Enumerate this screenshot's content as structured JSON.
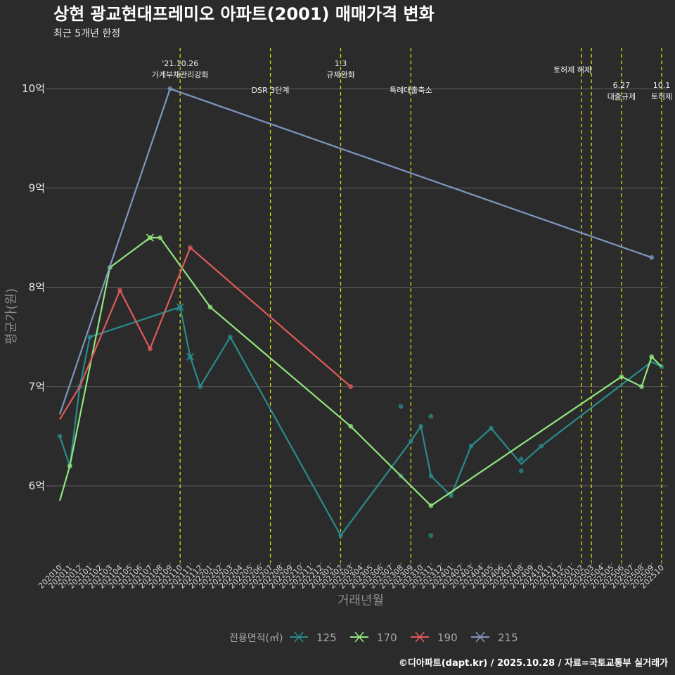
{
  "chart_data": {
    "type": "line",
    "title": "상현 광교현대프레미오 아파트(2001) 매매가격 변화",
    "subtitle": "최근 5개년 한정",
    "xlabel": "거래년월",
    "ylabel": "평균가(원)",
    "caption": "©디아파트(dapt.kr) / 2025.10.28 / 자료=국토교통부 실거래가",
    "legend_title": "전용면적(㎡)",
    "ylim": [
      5.3,
      10.4
    ],
    "yticks": [
      {
        "value": 6,
        "label": "6억"
      },
      {
        "value": 7,
        "label": "7억"
      },
      {
        "value": 8,
        "label": "8억"
      },
      {
        "value": 9,
        "label": "9억"
      },
      {
        "value": 10,
        "label": "10억"
      }
    ],
    "x_categories": [
      "202010",
      "202011",
      "202012",
      "202101",
      "202102",
      "202103",
      "202104",
      "202105",
      "202106",
      "202107",
      "202108",
      "202109",
      "202110",
      "202111",
      "202112",
      "202201",
      "202202",
      "202203",
      "202204",
      "202205",
      "202206",
      "202207",
      "202208",
      "202209",
      "202210",
      "202211",
      "202212",
      "202301",
      "202302",
      "202303",
      "202304",
      "202305",
      "202306",
      "202307",
      "202308",
      "202309",
      "202310",
      "202311",
      "202312",
      "202401",
      "202402",
      "202403",
      "202404",
      "202405",
      "202406",
      "202407",
      "202408",
      "202409",
      "202410",
      "202411",
      "202412",
      "202501",
      "202502",
      "202503",
      "202504",
      "202505",
      "202506",
      "202507",
      "202508",
      "202509",
      "202510"
    ],
    "series": [
      {
        "name": "125",
        "color": "#2a8b8b",
        "line": [
          [
            "202010",
            6.5
          ],
          [
            "202011",
            6.2
          ],
          [
            "202012",
            7.0
          ],
          [
            "202101",
            7.5
          ],
          [
            "202110",
            7.8
          ],
          [
            "202111",
            7.3
          ],
          [
            "202112",
            7.0
          ],
          [
            "202203",
            7.5
          ],
          [
            "202302",
            5.5
          ],
          [
            "202309",
            6.45
          ],
          [
            "202310",
            6.6
          ],
          [
            "202311",
            6.1
          ],
          [
            "202401",
            5.9
          ],
          [
            "202403",
            6.4
          ],
          [
            "202405",
            6.58
          ],
          [
            "202408",
            6.22
          ],
          [
            "202410",
            6.4
          ],
          [
            "202509",
            7.25
          ],
          [
            "202510",
            7.2
          ]
        ],
        "points": [
          [
            "202010",
            6.5
          ],
          [
            "202011",
            6.2
          ],
          [
            "202012",
            7.0
          ],
          [
            "202101",
            7.5
          ],
          [
            "202110",
            7.8
          ],
          [
            "202111",
            7.3
          ],
          [
            "202112",
            7.0
          ],
          [
            "202203",
            7.5
          ],
          [
            "202302",
            5.5
          ],
          [
            "202308",
            6.8
          ],
          [
            "202309",
            6.45
          ],
          [
            "202308",
            6.1
          ],
          [
            "202310",
            6.6
          ],
          [
            "202311",
            6.7
          ],
          [
            "202311",
            5.5
          ],
          [
            "202311",
            6.1
          ],
          [
            "202401",
            5.9
          ],
          [
            "202403",
            6.4
          ],
          [
            "202405",
            6.58
          ],
          [
            "202408",
            6.27
          ],
          [
            "202408",
            6.15
          ],
          [
            "202410",
            6.4
          ],
          [
            "202510",
            7.2
          ]
        ]
      },
      {
        "name": "170",
        "color": "#90e47e",
        "line": [
          [
            "202010",
            5.85
          ],
          [
            "202011",
            6.2
          ],
          [
            "202103",
            8.2
          ],
          [
            "202107",
            8.5
          ],
          [
            "202108",
            8.5
          ],
          [
            "202201",
            7.8
          ],
          [
            "202303",
            6.6
          ],
          [
            "202311",
            5.8
          ],
          [
            "202506",
            7.1
          ],
          [
            "202508",
            7.0
          ],
          [
            "202509",
            7.3
          ],
          [
            "202510",
            7.2
          ]
        ],
        "points": [
          [
            "202011",
            6.2
          ],
          [
            "202103",
            8.2
          ],
          [
            "202107",
            8.5
          ],
          [
            "202108",
            8.5
          ],
          [
            "202201",
            7.8
          ],
          [
            "202303",
            6.6
          ],
          [
            "202311",
            5.8
          ],
          [
            "202506",
            7.1
          ],
          [
            "202508",
            7.0
          ],
          [
            "202509",
            7.3
          ]
        ]
      },
      {
        "name": "190",
        "color": "#e05a5a",
        "line": [
          [
            "202010",
            6.67
          ],
          [
            "202012",
            7.0
          ],
          [
            "202104",
            7.97
          ],
          [
            "202107",
            7.38
          ],
          [
            "202111",
            8.4
          ],
          [
            "202303",
            7.0
          ]
        ],
        "points": [
          [
            "202104",
            7.97
          ],
          [
            "202107",
            7.38
          ],
          [
            "202111",
            8.4
          ],
          [
            "202303",
            7.0
          ]
        ]
      },
      {
        "name": "215",
        "color": "#7e96bf",
        "line": [
          [
            "202010",
            6.72
          ],
          [
            "202109",
            10.0
          ],
          [
            "202509",
            8.3
          ]
        ],
        "points": [
          [
            "202109",
            10.0
          ],
          [
            "202509",
            8.3
          ]
        ]
      }
    ],
    "events": [
      {
        "x": "202110",
        "label": "'21.10.26\n가계부채관리강화",
        "row": 1
      },
      {
        "x": "202207",
        "label": "DSR 3단계",
        "row": 2
      },
      {
        "x": "202302",
        "label": "1.3\n규제완화",
        "row": 1
      },
      {
        "x": "202309",
        "label": "특례대출축소",
        "row": 2
      },
      {
        "x": "202502",
        "label": "",
        "row": 0
      },
      {
        "x": "202503",
        "label": "토허제 해제",
        "row": 0,
        "anchor_x": "202502.5"
      },
      {
        "x": "202506",
        "label": "6.27\n대출규제",
        "row": 3
      },
      {
        "x": "202510",
        "label": "10.1\n토허제",
        "row": 3
      }
    ]
  }
}
